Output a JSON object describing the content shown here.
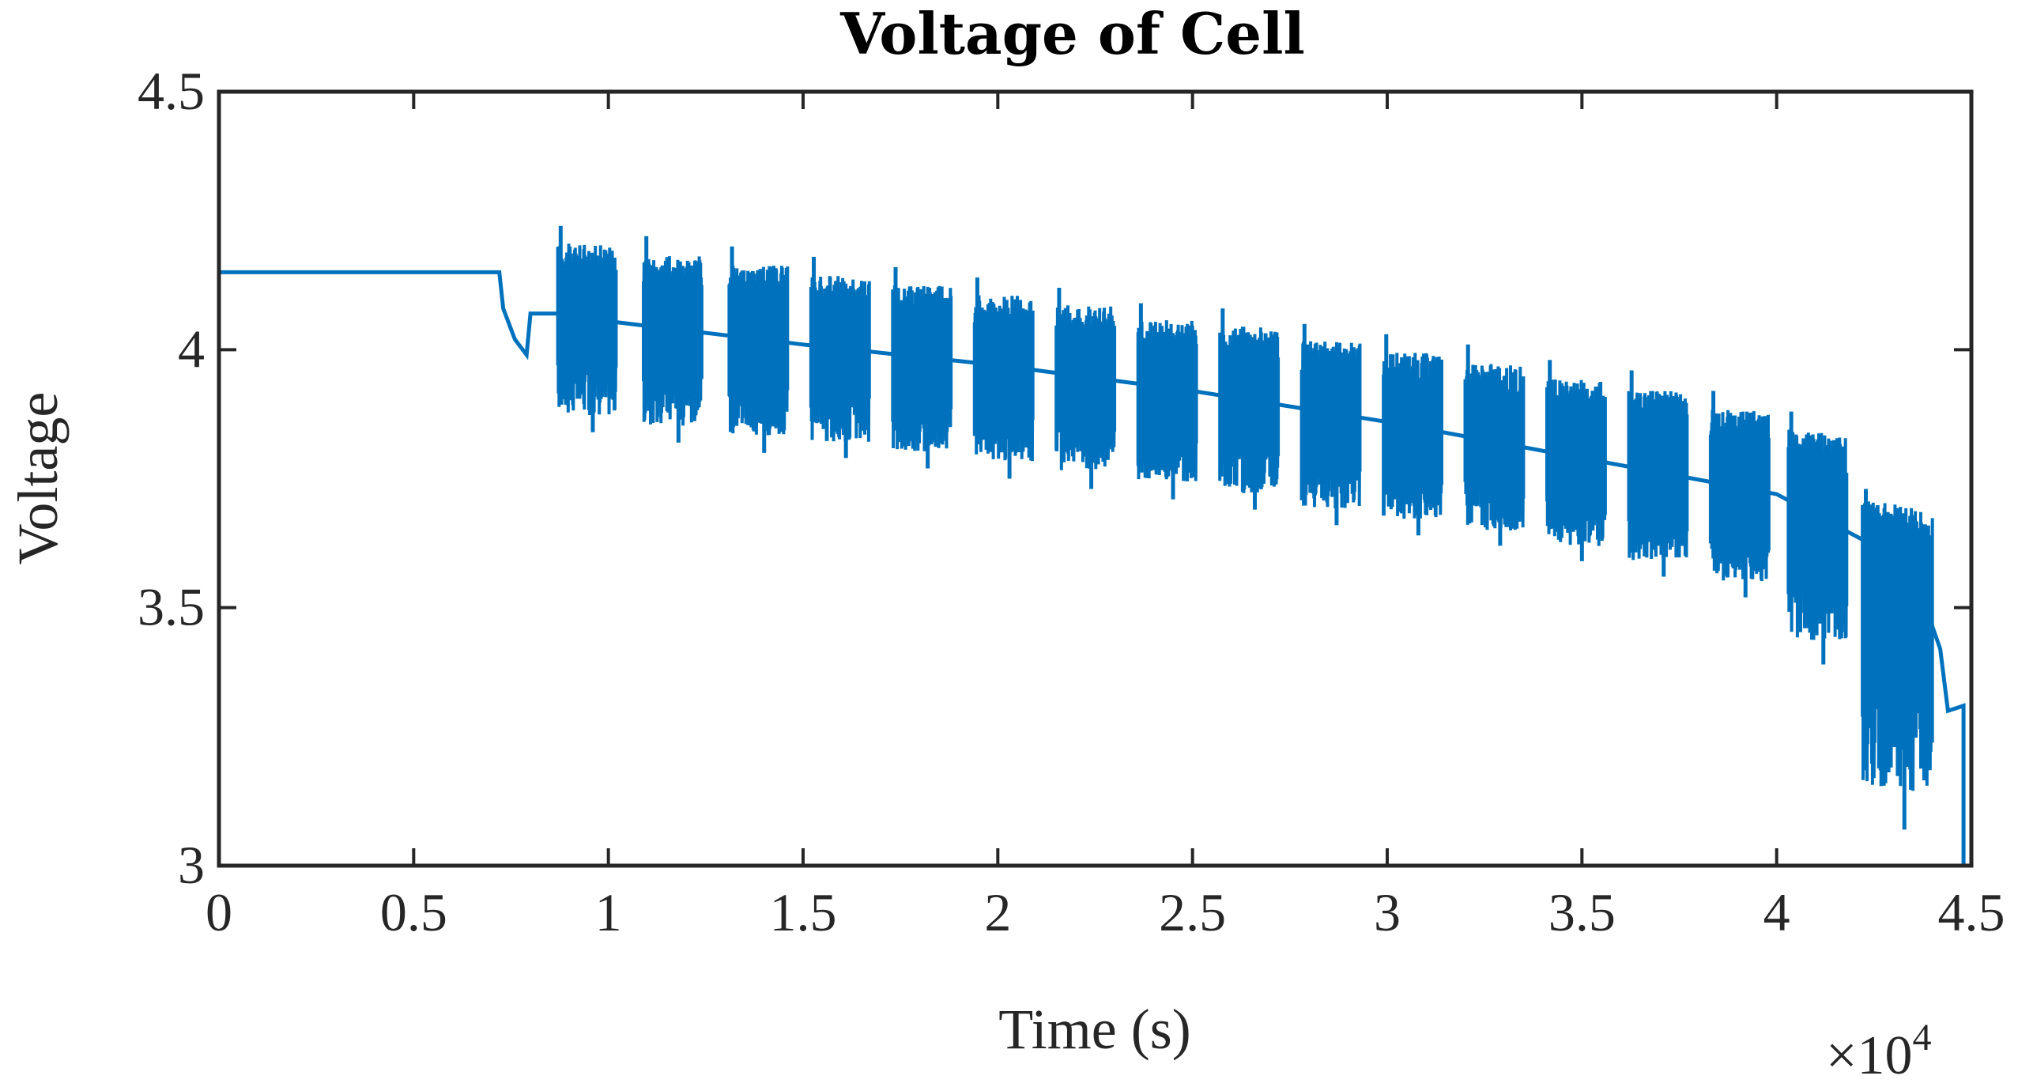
{
  "chart_data": {
    "type": "line",
    "title": "Voltage of Cell",
    "xlabel": "Time (s)",
    "ylabel": "Voltage",
    "x_multiplier": "×10",
    "x_multiplier_exponent": "4",
    "xlim": [
      0,
      4.5
    ],
    "ylim": [
      3,
      4.5
    ],
    "x_ticks": [
      0,
      0.5,
      1,
      1.5,
      2,
      2.5,
      3,
      3.5,
      4,
      4.5
    ],
    "x_tick_labels": [
      "0",
      "0.5",
      "1",
      "1.5",
      "2",
      "2.5",
      "3",
      "3.5",
      "4",
      "4.5"
    ],
    "y_ticks": [
      3,
      3.5,
      4,
      4.5
    ],
    "y_tick_labels": [
      "3",
      "3.5",
      "4",
      "4.5"
    ],
    "line_color": "#0072BD",
    "series": [
      {
        "name": "Voltage",
        "baseline": [
          [
            0,
            4.15
          ],
          [
            0.72,
            4.15
          ],
          [
            0.73,
            4.08
          ],
          [
            0.76,
            4.02
          ],
          [
            0.79,
            3.99
          ],
          [
            0.8,
            4.07
          ],
          [
            0.88,
            4.07
          ],
          [
            1.0,
            4.055
          ],
          [
            1.5,
            4.01
          ],
          [
            2.0,
            3.97
          ],
          [
            2.5,
            3.92
          ],
          [
            3.0,
            3.86
          ],
          [
            3.5,
            3.79
          ],
          [
            4.0,
            3.72
          ],
          [
            4.25,
            3.62
          ],
          [
            4.36,
            3.55
          ],
          [
            4.42,
            3.42
          ],
          [
            4.44,
            3.3
          ],
          [
            4.48,
            3.31
          ]
        ],
        "drop_to": [
          4.48,
          3.0
        ],
        "pulse_bursts": [
          {
            "x_start": 0.87,
            "x_end": 1.02,
            "high": 4.24,
            "low": 3.84
          },
          {
            "x_start": 1.09,
            "x_end": 1.24,
            "high": 4.22,
            "low": 3.82
          },
          {
            "x_start": 1.31,
            "x_end": 1.46,
            "high": 4.2,
            "low": 3.8
          },
          {
            "x_start": 1.52,
            "x_end": 1.67,
            "high": 4.18,
            "low": 3.79
          },
          {
            "x_start": 1.73,
            "x_end": 1.88,
            "high": 4.16,
            "low": 3.77
          },
          {
            "x_start": 1.94,
            "x_end": 2.09,
            "high": 4.14,
            "low": 3.75
          },
          {
            "x_start": 2.15,
            "x_end": 2.3,
            "high": 4.12,
            "low": 3.73
          },
          {
            "x_start": 2.36,
            "x_end": 2.51,
            "high": 4.09,
            "low": 3.71
          },
          {
            "x_start": 2.57,
            "x_end": 2.72,
            "high": 4.08,
            "low": 3.69
          },
          {
            "x_start": 2.78,
            "x_end": 2.93,
            "high": 4.05,
            "low": 3.66
          },
          {
            "x_start": 2.99,
            "x_end": 3.14,
            "high": 4.03,
            "low": 3.64
          },
          {
            "x_start": 3.2,
            "x_end": 3.35,
            "high": 4.01,
            "low": 3.62
          },
          {
            "x_start": 3.41,
            "x_end": 3.56,
            "high": 3.98,
            "low": 3.59
          },
          {
            "x_start": 3.62,
            "x_end": 3.77,
            "high": 3.96,
            "low": 3.56
          },
          {
            "x_start": 3.83,
            "x_end": 3.98,
            "high": 3.92,
            "low": 3.52
          },
          {
            "x_start": 4.03,
            "x_end": 4.18,
            "high": 3.88,
            "low": 3.39
          },
          {
            "x_start": 4.22,
            "x_end": 4.4,
            "high": 3.73,
            "low": 3.07
          }
        ]
      }
    ]
  }
}
